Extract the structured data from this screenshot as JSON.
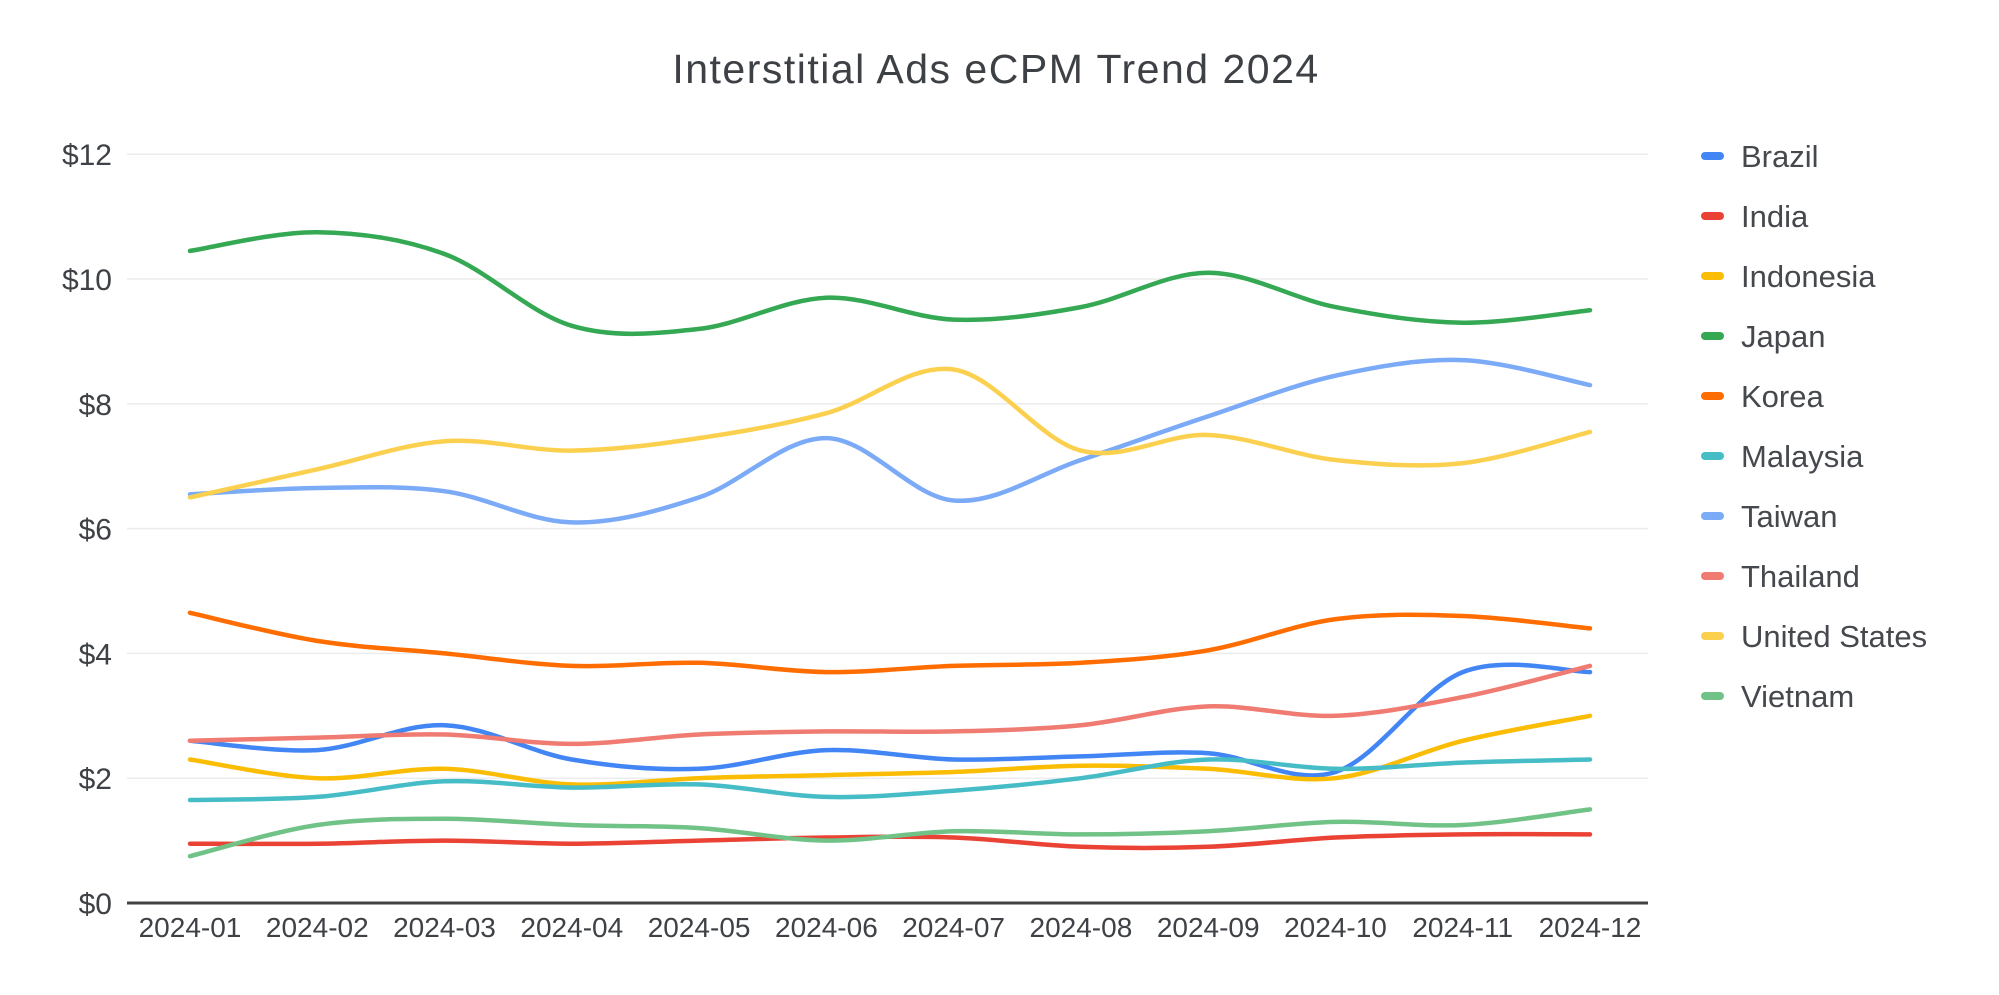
{
  "chart_data": {
    "type": "line",
    "curve": "smooth",
    "title": "Interstitial Ads eCPM Trend 2024",
    "x": [
      "2024-01",
      "2024-02",
      "2024-03",
      "2024-04",
      "2024-05",
      "2024-06",
      "2024-07",
      "2024-08",
      "2024-09",
      "2024-10",
      "2024-11",
      "2024-12"
    ],
    "series": [
      {
        "name": "Brazil",
        "color": "#4285F4",
        "values": [
          2.6,
          2.45,
          2.85,
          2.3,
          2.15,
          2.45,
          2.3,
          2.35,
          2.4,
          2.1,
          3.7,
          3.7
        ]
      },
      {
        "name": "India",
        "color": "#EA4335",
        "values": [
          0.95,
          0.95,
          1.0,
          0.95,
          1.0,
          1.05,
          1.05,
          0.9,
          0.9,
          1.05,
          1.1,
          1.1
        ]
      },
      {
        "name": "Indonesia",
        "color": "#FBBC04",
        "values": [
          2.3,
          2.0,
          2.15,
          1.9,
          2.0,
          2.05,
          2.1,
          2.2,
          2.15,
          2.0,
          2.6,
          3.0
        ]
      },
      {
        "name": "Japan",
        "color": "#34A853",
        "values": [
          10.45,
          10.75,
          10.4,
          9.25,
          9.2,
          9.7,
          9.35,
          9.55,
          10.1,
          9.55,
          9.3,
          9.5
        ]
      },
      {
        "name": "Korea",
        "color": "#FF6D01",
        "values": [
          4.65,
          4.2,
          4.0,
          3.8,
          3.85,
          3.7,
          3.8,
          3.85,
          4.05,
          4.55,
          4.6,
          4.4
        ]
      },
      {
        "name": "Malaysia",
        "color": "#46BDC6",
        "values": [
          1.65,
          1.7,
          1.95,
          1.85,
          1.9,
          1.7,
          1.8,
          2.0,
          2.3,
          2.15,
          2.25,
          2.3
        ]
      },
      {
        "name": "Taiwan",
        "color": "#7BAAF7",
        "values": [
          6.55,
          6.65,
          6.6,
          6.1,
          6.5,
          7.45,
          6.45,
          7.1,
          7.8,
          8.45,
          8.7,
          8.3
        ]
      },
      {
        "name": "Thailand",
        "color": "#F07B72",
        "values": [
          2.6,
          2.65,
          2.7,
          2.55,
          2.7,
          2.75,
          2.75,
          2.85,
          3.15,
          3.0,
          3.3,
          3.8
        ]
      },
      {
        "name": "United States",
        "color": "#FCD04F",
        "values": [
          6.5,
          6.95,
          7.4,
          7.25,
          7.45,
          7.85,
          8.55,
          7.25,
          7.5,
          7.1,
          7.05,
          7.55
        ]
      },
      {
        "name": "Vietnam",
        "color": "#71C287",
        "values": [
          0.75,
          1.25,
          1.35,
          1.25,
          1.2,
          1.0,
          1.15,
          1.1,
          1.15,
          1.3,
          1.25,
          1.5
        ]
      }
    ],
    "y_axis": {
      "min": 0,
      "max": 12,
      "tick_step": 2,
      "tick_labels": [
        "$0",
        "$2",
        "$4",
        "$6",
        "$8",
        "$10",
        "$12"
      ],
      "currency": "USD"
    },
    "x_axis": {
      "label_count": 12
    },
    "legend_position": "right",
    "grid": "horizontal",
    "styles": {
      "title_color": "#3d4045",
      "axis_label_color": "#3e4145",
      "legend_text_color": "#45484c",
      "gridline_color": "#ececec",
      "baseline_color": "#424242",
      "background": "#ffffff"
    }
  }
}
